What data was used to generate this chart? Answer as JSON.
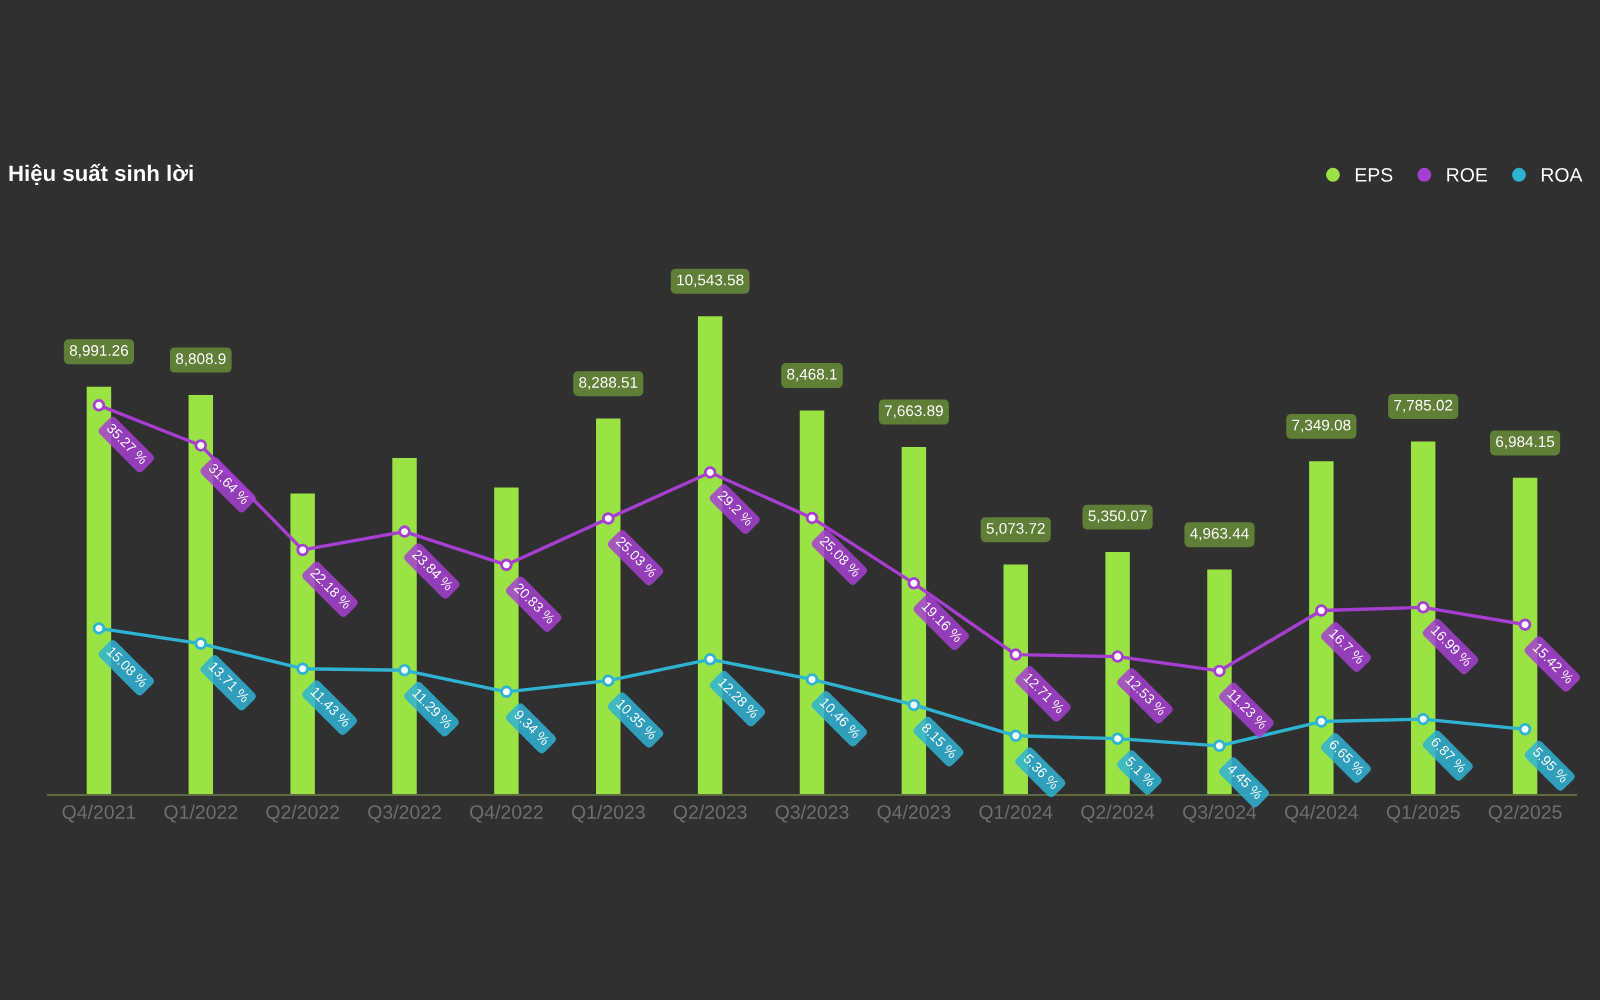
{
  "chart_data": {
    "type": "bar",
    "title": "Hiệu suất sinh lời",
    "legend": "top right",
    "grid": false,
    "categories": [
      "Q4/2021",
      "Q1/2022",
      "Q2/2022",
      "Q3/2022",
      "Q4/2022",
      "Q1/2023",
      "Q2/2023",
      "Q3/2023",
      "Q4/2023",
      "Q1/2024",
      "Q2/2024",
      "Q3/2024",
      "Q4/2024",
      "Q1/2025",
      "Q2/2025"
    ],
    "series": [
      {
        "name": "EPS",
        "color": "#9be345",
        "values": [
          8991.26,
          8808.9,
          6640,
          7420,
          6770,
          8288.51,
          10543.58,
          8468.1,
          7663.89,
          5073.72,
          5350.07,
          4963.44,
          7349.08,
          7785.02,
          6984.15
        ],
        "value_labels": [
          "8,991.26",
          "8,808.9",
          null,
          null,
          null,
          "8,288.51",
          "10,543.58",
          "8,468.1",
          "7,663.89",
          "5,073.72",
          "5,350.07",
          "4,963.44",
          "7,349.08",
          "7,785.02",
          "6,984.15"
        ]
      },
      {
        "name": "ROE",
        "type": "line",
        "axis": "y2",
        "color": "#a63fd1",
        "marker": "circle",
        "values": [
          35.27,
          31.64,
          22.18,
          23.84,
          20.83,
          25.03,
          29.2,
          25.08,
          19.16,
          12.71,
          12.53,
          11.23,
          16.7,
          16.99,
          15.42
        ],
        "value_labels": [
          "35.27 %",
          "31.64 %",
          "22.18 %",
          "23.84 %",
          "20.83 %",
          "25.03 %",
          "29.2 %",
          "25.08 %",
          "19.16 %",
          "12.71 %",
          "12.53 %",
          "11.23 %",
          "16.7 %",
          "16.99 %",
          "15.42 %"
        ]
      },
      {
        "name": "ROA",
        "type": "line",
        "axis": "y2",
        "color": "#2fb3d3",
        "marker": "circle",
        "values": [
          15.08,
          13.71,
          11.43,
          11.29,
          9.34,
          10.35,
          12.28,
          10.46,
          8.15,
          5.36,
          5.1,
          4.45,
          6.65,
          6.87,
          5.95
        ],
        "value_labels": [
          "15.08 %",
          "13.71 %",
          "11.43 %",
          "11.29 %",
          "9.34 %",
          "10.35 %",
          "12.28 %",
          "10.46 %",
          "8.15 %",
          "5.36 %",
          "5.1 %",
          "4.45 %",
          "6.65 %",
          "6.87 %",
          "5.95 %"
        ]
      }
    ]
  }
}
